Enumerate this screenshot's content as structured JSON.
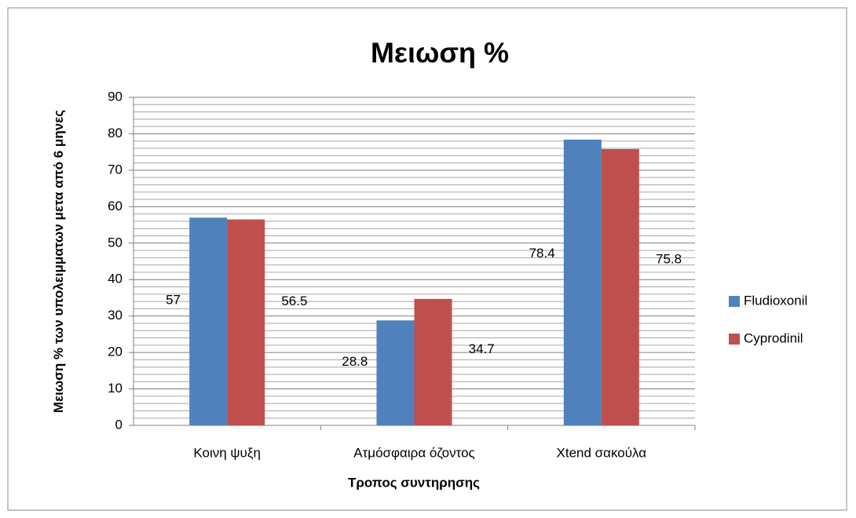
{
  "chart_data": {
    "type": "bar",
    "title": "Μειωση %",
    "x_label": "Τροπος συντηρησης",
    "y_label": "Μειωση % των υπολειμματων μετα από 6 μηνες",
    "categories": [
      "Κοινη ψυξη",
      "Ατμόσφαιρα όζοντος",
      "Xtend σακούλα"
    ],
    "series": [
      {
        "name": "Fludioxonil",
        "color": "#4f81bd",
        "values": [
          57,
          28.8,
          78.4
        ]
      },
      {
        "name": "Cyprodinil",
        "color": "#c0504d",
        "values": [
          56.5,
          34.7,
          75.8
        ]
      }
    ],
    "ylim": [
      0,
      90
    ],
    "yticks": [
      0,
      10,
      20,
      30,
      40,
      50,
      60,
      70,
      80,
      90
    ],
    "yminorticks": [
      2,
      4,
      6,
      8,
      12,
      14,
      16,
      18,
      22,
      24,
      26,
      28,
      32,
      34,
      36,
      38,
      42,
      44,
      46,
      48,
      52,
      54,
      56,
      58,
      62,
      64,
      66,
      68,
      72,
      74,
      76,
      78,
      82,
      84,
      86,
      88
    ],
    "grid": true,
    "legend": "right"
  }
}
